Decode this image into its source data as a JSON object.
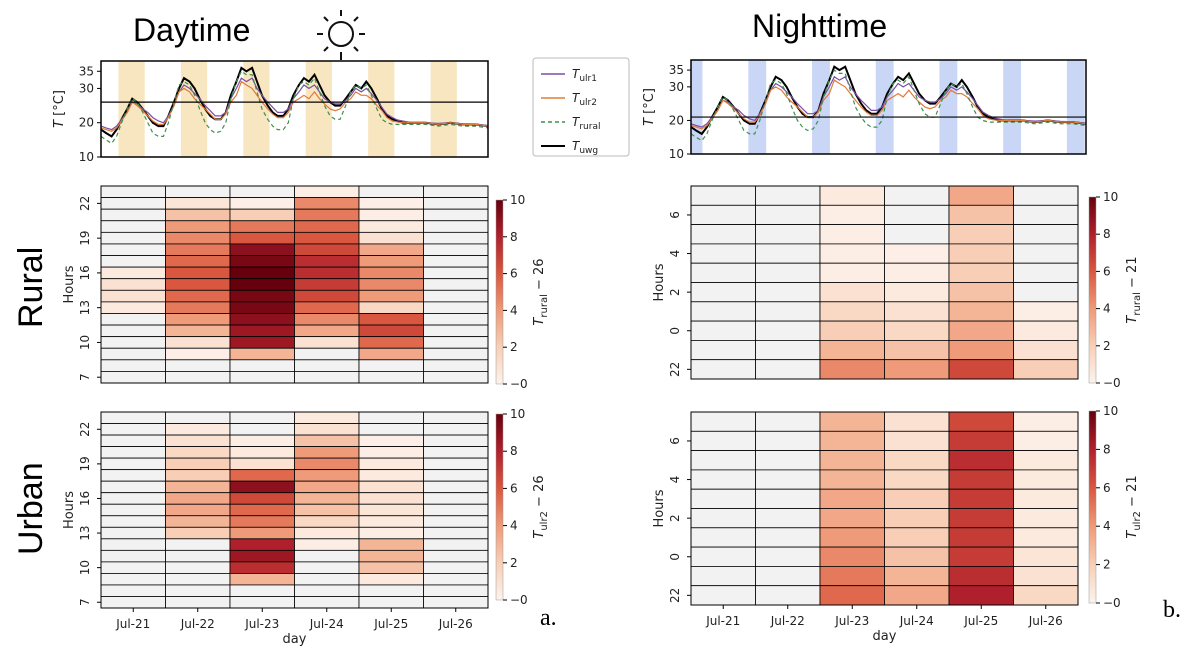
{
  "titles": {
    "daytime": "Daytime",
    "nighttime": "Nighttime"
  },
  "row_labels": {
    "rural": "Rural",
    "urban": "Urban"
  },
  "panel_letters": {
    "a": "a.",
    "b": "b."
  },
  "colors": {
    "t_ulr1": "#7b4fa6",
    "t_ulr2": "#e07b39",
    "t_rural": "#3f8f4f",
    "t_uwg": "#000000",
    "day_band": "#f7e6bf",
    "night_band": "#c9d6f5"
  },
  "icons": {
    "daytime": "sun-icon",
    "nighttime": "moon-icon"
  },
  "legend": [
    {
      "main": "T",
      "sub": "ulr1",
      "style": "solid",
      "color": "#7b4fa6"
    },
    {
      "main": "T",
      "sub": "ulr2",
      "style": "solid",
      "color": "#e07b39"
    },
    {
      "main": "T",
      "sub": "rural",
      "style": "dashed",
      "color": "#3f8f4f"
    },
    {
      "main": "T",
      "sub": "uwg",
      "style": "solid",
      "color": "#000000"
    }
  ],
  "chart_data": [
    {
      "id": "daytime_temperature",
      "type": "line",
      "ylabel_main": "T",
      "ylabel_unit": "[°C]",
      "yticks": [
        10,
        20,
        30,
        35
      ],
      "ylim": [
        10,
        38
      ],
      "xlim": [
        0,
        6.2
      ],
      "reference_line": 26,
      "shaded_bands": "daytime hours each day",
      "x_days": [
        0.0,
        0.08,
        0.17,
        0.25,
        0.33,
        0.42,
        0.5,
        0.58,
        0.67,
        0.75,
        0.83,
        0.92,
        1.0,
        1.08,
        1.17,
        1.25,
        1.33,
        1.42,
        1.5,
        1.58,
        1.67,
        1.75,
        1.83,
        1.92,
        2.0,
        2.08,
        2.17,
        2.25,
        2.33,
        2.42,
        2.5,
        2.58,
        2.67,
        2.75,
        2.83,
        2.92,
        3.0,
        3.08,
        3.17,
        3.25,
        3.33,
        3.42,
        3.5,
        3.58,
        3.67,
        3.75,
        3.83,
        3.92,
        4.0,
        4.08,
        4.17,
        4.25,
        4.33,
        4.42,
        4.5,
        4.58,
        4.67,
        4.75,
        4.83,
        4.92,
        5.0,
        5.2,
        5.4,
        5.6,
        5.8,
        6.0,
        6.2
      ],
      "series": [
        {
          "name": "T_uwg",
          "values": [
            18,
            17,
            16,
            18,
            21,
            24,
            27,
            26,
            24,
            22,
            20,
            19,
            19,
            22,
            26,
            30,
            33,
            32,
            30,
            27,
            24,
            22,
            21,
            21,
            23,
            28,
            32,
            36,
            35,
            36,
            32,
            28,
            25,
            23,
            22,
            22,
            24,
            28,
            31,
            33,
            32,
            34,
            31,
            28,
            26,
            25,
            25,
            27,
            29,
            31,
            30,
            32,
            30,
            27,
            24,
            22,
            21,
            20.5,
            20,
            20,
            20,
            20,
            19.5,
            20,
            19.5,
            19.5,
            19
          ]
        },
        {
          "name": "T_ulr1",
          "values": [
            19,
            18.5,
            18,
            19,
            21,
            23,
            26,
            25.5,
            24,
            23,
            21.5,
            20.5,
            20,
            22,
            25,
            29,
            31,
            30,
            28.5,
            27,
            25,
            23.5,
            22,
            22,
            23,
            27,
            30,
            33,
            32,
            33,
            30,
            28,
            26,
            24.5,
            23,
            23,
            24,
            27,
            29,
            31,
            30,
            31,
            29,
            27,
            26,
            25.5,
            25.5,
            26.5,
            28,
            30,
            29,
            30,
            28.5,
            26.5,
            24.5,
            22.5,
            21.5,
            20.8,
            20.5,
            20.2,
            20,
            20,
            19.8,
            20,
            19.7,
            19.6,
            19.2
          ]
        },
        {
          "name": "T_ulr2",
          "values": [
            18.5,
            18,
            17.5,
            18.5,
            20.5,
            23,
            26,
            25,
            23.5,
            22,
            20.5,
            19.5,
            19.5,
            21.5,
            25,
            29,
            30,
            29,
            27,
            25.5,
            24,
            22.5,
            21,
            21,
            22.5,
            26,
            28,
            32,
            31,
            30,
            28,
            26,
            24,
            22.5,
            21.5,
            21.5,
            23,
            26,
            27,
            28,
            27,
            29,
            27,
            25.5,
            24,
            23.5,
            24,
            26,
            27,
            29,
            28,
            28,
            27,
            25,
            23.5,
            21.5,
            20.5,
            20.2,
            20,
            20,
            20,
            20,
            19.5,
            20,
            19.5,
            19.5,
            19
          ]
        },
        {
          "name": "T_rural",
          "values": [
            16,
            15,
            14,
            16,
            20,
            24,
            27,
            26,
            23,
            20,
            17,
            16,
            16,
            20,
            26,
            31,
            32,
            31,
            28,
            24,
            20,
            18,
            17,
            17.5,
            20,
            27,
            32,
            35,
            34,
            34,
            29,
            24,
            21,
            19,
            18,
            18,
            20,
            27,
            31,
            32,
            31,
            33,
            29,
            25,
            22,
            21,
            21,
            25,
            29,
            31,
            30,
            31,
            28,
            24,
            21,
            20,
            19.5,
            19.5,
            19.5,
            19.5,
            19.5,
            19.5,
            19,
            19.5,
            19,
            19,
            18.5
          ]
        }
      ]
    },
    {
      "id": "nighttime_temperature",
      "type": "line",
      "ylabel_main": "T",
      "ylabel_unit": "[°C]",
      "yticks": [
        10,
        20,
        30,
        35
      ],
      "ylim": [
        10,
        38
      ],
      "xlim": [
        0,
        6.2
      ],
      "reference_line": 21,
      "shaded_bands": "nighttime hours each day",
      "x_days": "same as daytime_temperature",
      "series": "same as daytime_temperature"
    },
    {
      "id": "daytime_rural",
      "type": "heatmap",
      "xlabel": "day",
      "ylabel": "Hours",
      "x_categories": [
        "Jul-21",
        "Jul-22",
        "Jul-23",
        "Jul-24",
        "Jul-25",
        "Jul-26"
      ],
      "ytick_labels": [
        "22",
        "19",
        "16",
        "13",
        "10",
        "7"
      ],
      "row_hours": [
        23,
        22,
        21,
        20,
        19,
        18,
        17,
        16,
        15,
        14,
        13,
        12,
        11,
        10,
        9,
        8,
        7
      ],
      "colorbar": {
        "label_main": "T",
        "label_sub": "rural",
        "label_suffix": " − 26",
        "ticks": [
          0,
          2,
          4,
          6,
          8,
          10
        ],
        "range": [
          0,
          10
        ]
      },
      "values": [
        [
          0,
          0,
          0,
          0.3,
          0,
          0
        ],
        [
          0,
          0.8,
          0.2,
          4.5,
          0.2,
          0
        ],
        [
          0,
          2.5,
          2,
          5,
          0.3,
          0
        ],
        [
          0,
          4,
          5,
          5.5,
          0.5,
          0
        ],
        [
          0,
          4.5,
          6,
          6,
          1,
          0
        ],
        [
          0,
          5,
          9,
          6.5,
          3.5,
          0
        ],
        [
          0,
          5.5,
          9.5,
          7.5,
          4,
          0
        ],
        [
          0.5,
          6,
          10,
          7.5,
          4.5,
          0
        ],
        [
          1,
          6,
          10,
          7,
          4.5,
          0
        ],
        [
          1,
          5.5,
          9.5,
          6.5,
          4,
          0
        ],
        [
          0.5,
          5,
          9.5,
          5.5,
          1.5,
          0
        ],
        [
          0,
          4,
          9,
          4.5,
          6,
          0
        ],
        [
          0,
          3,
          8.5,
          3.5,
          6.5,
          0
        ],
        [
          0,
          1,
          8.5,
          1,
          5.5,
          0
        ],
        [
          0,
          0.2,
          3,
          0,
          3.5,
          0
        ],
        [
          0,
          0,
          0,
          0,
          0,
          0
        ],
        [
          0,
          0,
          0,
          0,
          0,
          0
        ]
      ]
    },
    {
      "id": "nighttime_rural",
      "type": "heatmap",
      "xlabel": "day",
      "ylabel": "Hours",
      "x_categories": [
        "Jul-21",
        "Jul-22",
        "Jul-23",
        "Jul-24",
        "Jul-25",
        "Jul-26"
      ],
      "ytick_labels": [
        "6",
        "4",
        "2",
        "0",
        "22"
      ],
      "row_hours": [
        7,
        6,
        5,
        4,
        3,
        2,
        1,
        0,
        23,
        22
      ],
      "colorbar": {
        "label_main": "T",
        "label_sub": "rural",
        "label_suffix": " − 21",
        "ticks": [
          0,
          2,
          4,
          6,
          8,
          10
        ],
        "range": [
          0,
          10
        ]
      },
      "values": [
        [
          0,
          0,
          0.5,
          0,
          3.5,
          0
        ],
        [
          0,
          0,
          0.3,
          0,
          2.5,
          0
        ],
        [
          0,
          0,
          0.3,
          0,
          2,
          0
        ],
        [
          0,
          0,
          0.3,
          0.2,
          2,
          0
        ],
        [
          0,
          0,
          0.3,
          0.3,
          2,
          0
        ],
        [
          0,
          0,
          1,
          0.5,
          2.5,
          0
        ],
        [
          0,
          0,
          1.5,
          1,
          3,
          0.3
        ],
        [
          0,
          0,
          2,
          1.5,
          3.5,
          0.5
        ],
        [
          0,
          0,
          3,
          2.5,
          4,
          1
        ],
        [
          0,
          0,
          4.5,
          4,
          6.5,
          2
        ]
      ]
    },
    {
      "id": "daytime_urban",
      "type": "heatmap",
      "xlabel": "day",
      "ylabel": "Hours",
      "x_categories": [
        "Jul-21",
        "Jul-22",
        "Jul-23",
        "Jul-24",
        "Jul-25",
        "Jul-26"
      ],
      "ytick_labels": [
        "22",
        "19",
        "16",
        "13",
        "10",
        "7"
      ],
      "row_hours": [
        23,
        22,
        21,
        20,
        19,
        18,
        17,
        16,
        15,
        14,
        13,
        12,
        11,
        10,
        9,
        8,
        7
      ],
      "colorbar": {
        "label_main": "T",
        "label_sub": "ulr2",
        "label_suffix": " − 26",
        "ticks": [
          0,
          2,
          4,
          6,
          8,
          10
        ],
        "range": [
          0,
          10
        ]
      },
      "values": [
        [
          0,
          0,
          0,
          0.5,
          0,
          0
        ],
        [
          0,
          0.5,
          0,
          1,
          0,
          0
        ],
        [
          0,
          1,
          0.3,
          2.5,
          0.2,
          0
        ],
        [
          0,
          1.5,
          0.5,
          4,
          0.3,
          0
        ],
        [
          0,
          2,
          1,
          4.5,
          0.5,
          0
        ],
        [
          0,
          2,
          5.5,
          4,
          0.5,
          0
        ],
        [
          0,
          3,
          9,
          3.5,
          1,
          0
        ],
        [
          0,
          3.5,
          6.5,
          3,
          1,
          0
        ],
        [
          0,
          3.5,
          5.5,
          2.5,
          0.8,
          0
        ],
        [
          0,
          3,
          5,
          1.5,
          0.5,
          0
        ],
        [
          0,
          2,
          4,
          0.5,
          0.3,
          0
        ],
        [
          0,
          0,
          8,
          0.3,
          3,
          0
        ],
        [
          0,
          0,
          8.5,
          0,
          3,
          0
        ],
        [
          0,
          0,
          7.5,
          0,
          2.5,
          0
        ],
        [
          0,
          0,
          3,
          0,
          0.5,
          0
        ],
        [
          0,
          0,
          0,
          0,
          0,
          0
        ],
        [
          0,
          0,
          0,
          0,
          0,
          0
        ]
      ]
    },
    {
      "id": "nighttime_urban",
      "type": "heatmap",
      "xlabel": "day",
      "ylabel": "Hours",
      "x_categories": [
        "Jul-21",
        "Jul-22",
        "Jul-23",
        "Jul-24",
        "Jul-25",
        "Jul-26"
      ],
      "ytick_labels": [
        "6",
        "4",
        "2",
        "0",
        "22"
      ],
      "row_hours": [
        7,
        6,
        5,
        4,
        3,
        2,
        1,
        0,
        23,
        22
      ],
      "colorbar": {
        "label_main": "T",
        "label_sub": "ulr2",
        "label_suffix": " − 21",
        "ticks": [
          0,
          2,
          4,
          6,
          8,
          10
        ],
        "range": [
          0,
          10
        ]
      },
      "values": [
        [
          0,
          0,
          3,
          1,
          6.5,
          0.3
        ],
        [
          0,
          0,
          3,
          1,
          7,
          0.3
        ],
        [
          0,
          0,
          3,
          1.5,
          7.5,
          0.5
        ],
        [
          0,
          0,
          3,
          1.5,
          7,
          0.5
        ],
        [
          0,
          0,
          3.5,
          2,
          7,
          0.5
        ],
        [
          0,
          0,
          3.5,
          2,
          7,
          0.5
        ],
        [
          0,
          0,
          4,
          2,
          7,
          0.5
        ],
        [
          0,
          0,
          4.5,
          2.5,
          7,
          0.8
        ],
        [
          0,
          0,
          5,
          3,
          7.5,
          1
        ],
        [
          0,
          0,
          5.5,
          3.5,
          8,
          1.5
        ]
      ]
    }
  ]
}
